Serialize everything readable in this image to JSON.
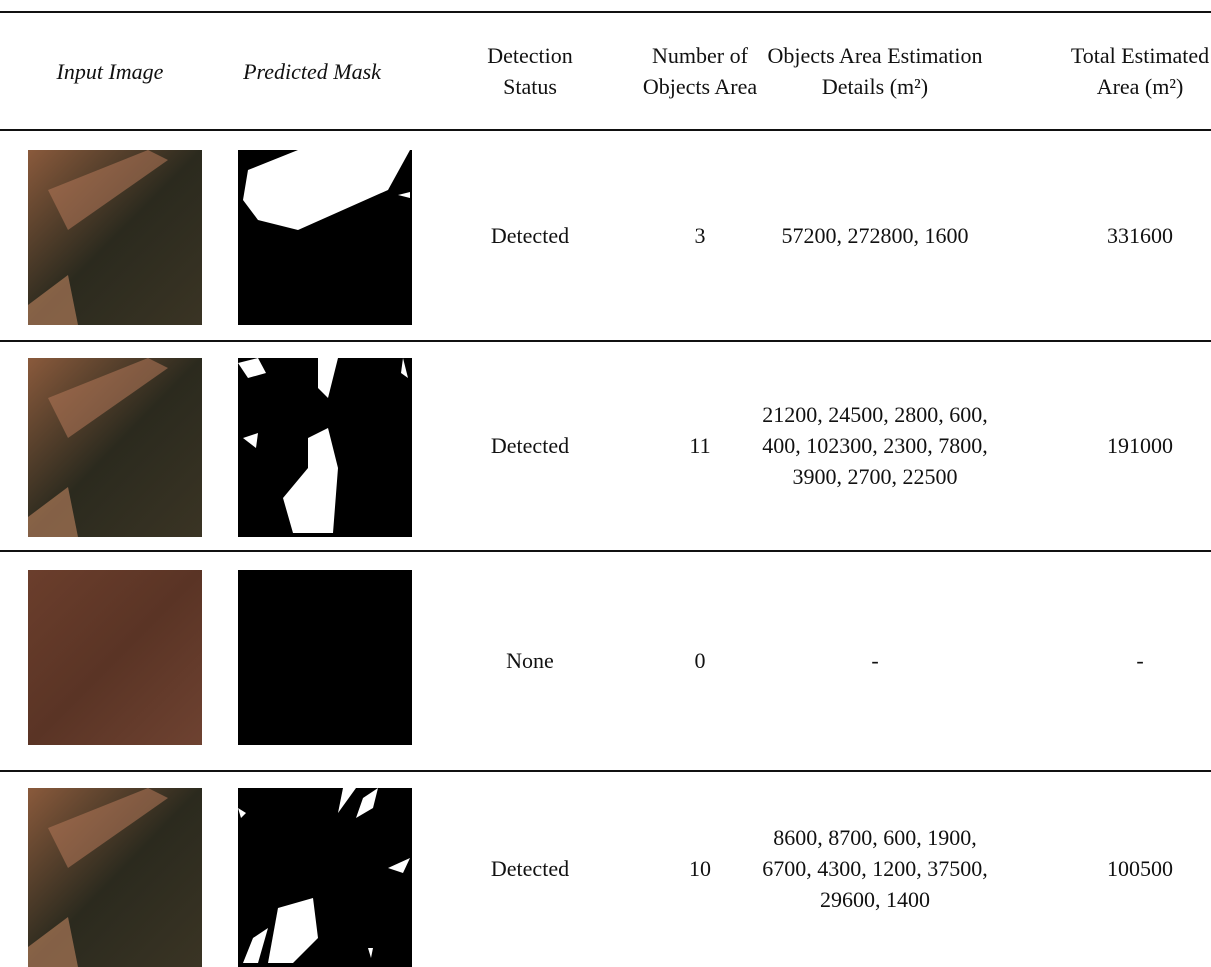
{
  "table": {
    "header": [
      "Input Image",
      "Predicted Mask",
      "Detection Status",
      "Number of Objects Area",
      "Objects Area Estimation Details (m²)",
      "Total Estimated Area (m²)"
    ],
    "rows": [
      [
        "Detected",
        3,
        "57200, 272800, 1600",
        331600
      ],
      [
        "Detected",
        11,
        "21200, 24500, 2800, 600, 400, 102300, 2300, 7800, 3900, 2700, 22500",
        191000
      ],
      [
        "None",
        0,
        "-",
        "-"
      ],
      [
        "Detected",
        10,
        "8600, 8700, 600, 1900, 6700, 4300, 1200, 37500, 29600, 1400",
        100500
      ]
    ]
  }
}
